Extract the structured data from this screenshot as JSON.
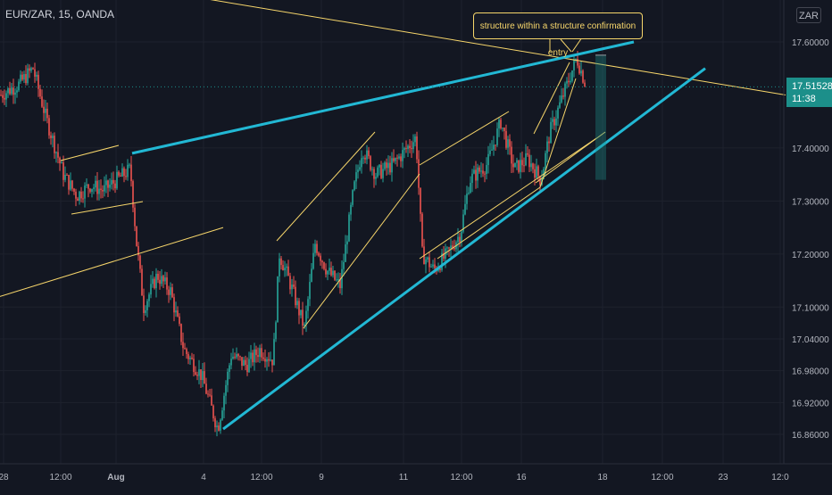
{
  "header": {
    "symbol": "EUR/ZAR",
    "interval": "15",
    "broker": "OANDA",
    "title_text": "EUR/ZAR, 15, OANDA"
  },
  "currency_button": "ZAR",
  "annotation_text": "structure within a structure confirmation entry",
  "price_tag": {
    "price": "17.51528",
    "countdown": "11:38"
  },
  "colors": {
    "background": "#131722",
    "up_candle": "#26a69a",
    "down_candle": "#ef5350",
    "trendline_yellow": "#f7d66b",
    "trendline_cyan": "#22b8d4",
    "price_tag": "#1c8f8a"
  },
  "chart_data": {
    "type": "candlestick",
    "title": "EUR/ZAR, 15, OANDA",
    "xlabel": "",
    "ylabel": "",
    "ylim": [
      16.83,
      17.66
    ],
    "grid": true,
    "y_ticks": [
      "17.60000",
      "17.40000",
      "17.30000",
      "17.20000",
      "17.10000",
      "17.04000",
      "16.98000",
      "16.92000",
      "16.86000"
    ],
    "x_ticks": [
      "28",
      "12:00",
      "Aug",
      "4",
      "12:00",
      "9",
      "11",
      "12:00",
      "16",
      "18",
      "12:00",
      "23",
      "12:0"
    ],
    "current_price": 17.51528,
    "close_path": [
      {
        "t": 0,
        "p": 17.5
      },
      {
        "t": 20,
        "p": 17.52
      },
      {
        "t": 36,
        "p": 17.55
      },
      {
        "t": 50,
        "p": 17.46
      },
      {
        "t": 70,
        "p": 17.35
      },
      {
        "t": 85,
        "p": 17.31
      },
      {
        "t": 100,
        "p": 17.33
      },
      {
        "t": 115,
        "p": 17.32
      },
      {
        "t": 130,
        "p": 17.34
      },
      {
        "t": 145,
        "p": 17.36
      },
      {
        "t": 152,
        "p": 17.22
      },
      {
        "t": 160,
        "p": 17.1
      },
      {
        "t": 175,
        "p": 17.16
      },
      {
        "t": 190,
        "p": 17.13
      },
      {
        "t": 205,
        "p": 17.02
      },
      {
        "t": 225,
        "p": 16.97
      },
      {
        "t": 243,
        "p": 16.87
      },
      {
        "t": 258,
        "p": 17.01
      },
      {
        "t": 275,
        "p": 16.99
      },
      {
        "t": 290,
        "p": 17.02
      },
      {
        "t": 305,
        "p": 17.0
      },
      {
        "t": 312,
        "p": 17.2
      },
      {
        "t": 325,
        "p": 17.14
      },
      {
        "t": 340,
        "p": 17.06
      },
      {
        "t": 352,
        "p": 17.22
      },
      {
        "t": 365,
        "p": 17.17
      },
      {
        "t": 380,
        "p": 17.14
      },
      {
        "t": 395,
        "p": 17.32
      },
      {
        "t": 405,
        "p": 17.4
      },
      {
        "t": 420,
        "p": 17.35
      },
      {
        "t": 440,
        "p": 17.37
      },
      {
        "t": 465,
        "p": 17.42
      },
      {
        "t": 472,
        "p": 17.2
      },
      {
        "t": 485,
        "p": 17.17
      },
      {
        "t": 500,
        "p": 17.2
      },
      {
        "t": 515,
        "p": 17.24
      },
      {
        "t": 525,
        "p": 17.34
      },
      {
        "t": 545,
        "p": 17.37
      },
      {
        "t": 560,
        "p": 17.45
      },
      {
        "t": 575,
        "p": 17.36
      },
      {
        "t": 590,
        "p": 17.38
      },
      {
        "t": 605,
        "p": 17.34
      },
      {
        "t": 615,
        "p": 17.43
      },
      {
        "t": 630,
        "p": 17.5
      },
      {
        "t": 645,
        "p": 17.57
      },
      {
        "t": 655,
        "p": 17.52
      }
    ],
    "trendlines": [
      {
        "color": "yellow",
        "from": {
          "t": 235,
          "p": 17.68
        },
        "to": {
          "t": 880,
          "p": 17.5
        }
      },
      {
        "color": "yellow",
        "from": {
          "t": 0,
          "p": 17.12
        },
        "to": {
          "t": 250,
          "p": 17.25
        }
      },
      {
        "color": "cyan",
        "from": {
          "t": 148,
          "p": 17.39
        },
        "to": {
          "t": 710,
          "p": 17.6
        }
      },
      {
        "color": "cyan",
        "from": {
          "t": 250,
          "p": 16.87
        },
        "to": {
          "t": 790,
          "p": 17.55
        }
      }
    ],
    "position_marker": {
      "t_start": 667,
      "t_end": 679,
      "p_top": 17.575,
      "p_bottom": 17.34
    }
  }
}
